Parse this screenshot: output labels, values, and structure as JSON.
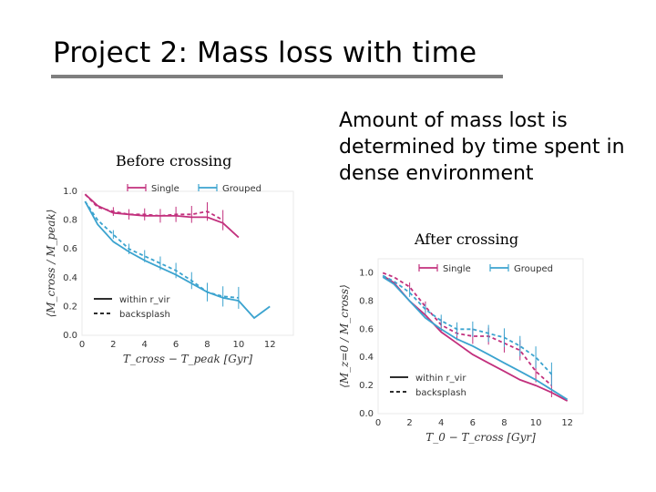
{
  "slide": {
    "title": "Project 2: Mass loss with time",
    "caption_left": "Before crossing",
    "caption_right": "After crossing",
    "text": "Amount of mass lost is determined by time spent in dense environment"
  },
  "chart_data": [
    {
      "type": "line",
      "title": "",
      "xlabel": "T_cross − T_peak [Gyr]",
      "ylabel": "⟨M_cross / M_peak⟩",
      "xlim": [
        0,
        13.5
      ],
      "ylim": [
        0,
        1.0
      ],
      "xticks": [
        "0",
        "2",
        "4",
        "6",
        "8",
        "10",
        "12"
      ],
      "yticks": [
        "0.0",
        "0.2",
        "0.4",
        "0.6",
        "0.8",
        "1.0"
      ],
      "legend_top": [
        "Single",
        "Grouped"
      ],
      "legend_bottom": [
        "within r_vir",
        "backsplash"
      ],
      "colors": {
        "single": "#c2307d",
        "grouped": "#3ba3cf"
      },
      "series": [
        {
          "name": "Single",
          "style": "within",
          "x": [
            0.2,
            1,
            2,
            3,
            4,
            5,
            6,
            7,
            8,
            9,
            10
          ],
          "y": [
            0.98,
            0.9,
            0.85,
            0.84,
            0.83,
            0.83,
            0.83,
            0.82,
            0.82,
            0.78,
            0.68
          ]
        },
        {
          "name": "Single",
          "style": "backsplash",
          "x": [
            0.2,
            1,
            2,
            3,
            4,
            5,
            6,
            7,
            8,
            9
          ],
          "y": [
            0.98,
            0.89,
            0.86,
            0.84,
            0.84,
            0.83,
            0.84,
            0.84,
            0.86,
            0.8
          ]
        },
        {
          "name": "Grouped",
          "style": "within",
          "x": [
            0.2,
            1,
            2,
            3,
            4,
            5,
            6,
            7,
            8,
            9,
            10,
            11,
            12
          ],
          "y": [
            0.93,
            0.77,
            0.65,
            0.58,
            0.52,
            0.47,
            0.42,
            0.36,
            0.3,
            0.26,
            0.24,
            0.12,
            0.2
          ]
        },
        {
          "name": "Grouped",
          "style": "backsplash",
          "x": [
            0.2,
            1,
            2,
            3,
            4,
            5,
            6,
            7,
            8,
            9,
            10
          ],
          "y": [
            0.93,
            0.8,
            0.7,
            0.6,
            0.55,
            0.5,
            0.45,
            0.38,
            0.3,
            0.27,
            0.26
          ]
        }
      ]
    },
    {
      "type": "line",
      "title": "",
      "xlabel": "T_0 − T_cross [Gyr]",
      "ylabel": "⟨M_z=0 / M_cross⟩",
      "xlim": [
        0,
        13
      ],
      "ylim": [
        0,
        1.1
      ],
      "xticks": [
        "0",
        "2",
        "4",
        "6",
        "8",
        "10",
        "12"
      ],
      "yticks": [
        "0.0",
        "0.2",
        "0.4",
        "0.6",
        "0.8",
        "1.0"
      ],
      "legend_top": [
        "Single",
        "Grouped"
      ],
      "legend_bottom": [
        "within r_vir",
        "backsplash"
      ],
      "colors": {
        "single": "#c2307d",
        "grouped": "#3ba3cf"
      },
      "series": [
        {
          "name": "Single",
          "style": "within",
          "x": [
            0.3,
            1,
            2,
            3,
            4,
            5,
            6,
            7,
            8,
            9,
            10,
            11,
            12
          ],
          "y": [
            0.98,
            0.93,
            0.8,
            0.7,
            0.58,
            0.5,
            0.42,
            0.36,
            0.3,
            0.24,
            0.2,
            0.15,
            0.09
          ]
        },
        {
          "name": "Single",
          "style": "backsplash",
          "x": [
            0.3,
            1,
            2,
            3,
            4,
            5,
            6,
            7,
            8,
            9,
            10,
            11
          ],
          "y": [
            1.0,
            0.97,
            0.9,
            0.76,
            0.63,
            0.57,
            0.55,
            0.55,
            0.5,
            0.45,
            0.3,
            0.2
          ]
        },
        {
          "name": "Grouped",
          "style": "within",
          "x": [
            0.3,
            1,
            2,
            3,
            4,
            5,
            6,
            7,
            8,
            9,
            10,
            11,
            12
          ],
          "y": [
            0.97,
            0.92,
            0.8,
            0.68,
            0.6,
            0.53,
            0.48,
            0.42,
            0.36,
            0.3,
            0.24,
            0.17,
            0.1
          ]
        },
        {
          "name": "Grouped",
          "style": "backsplash",
          "x": [
            0.3,
            1,
            2,
            3,
            4,
            5,
            6,
            7,
            8,
            9,
            10,
            11
          ],
          "y": [
            0.98,
            0.94,
            0.86,
            0.74,
            0.66,
            0.6,
            0.6,
            0.57,
            0.54,
            0.48,
            0.4,
            0.28
          ]
        }
      ]
    }
  ]
}
